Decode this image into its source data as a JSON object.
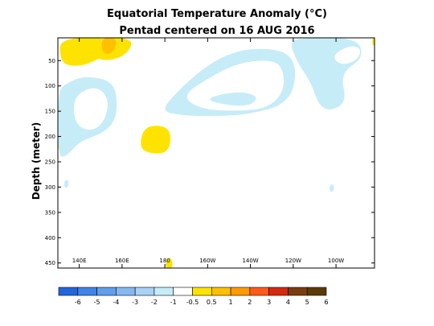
{
  "chart_data": {
    "type": "heatmap",
    "title": "Equatorial Temperature Anomaly (°C)",
    "subtitle": "Pentad centered on 16 AUG 2016",
    "ylabel": "Depth (meter)",
    "xlabel": "",
    "x_tick_labels": [
      "140E",
      "160E",
      "180",
      "160W",
      "140W",
      "120W",
      "100W"
    ],
    "x_ticks_deg_east": [
      140,
      160,
      180,
      200,
      220,
      240,
      260
    ],
    "xlim_deg_east": [
      130,
      278
    ],
    "y_ticks": [
      50,
      100,
      150,
      200,
      250,
      300,
      350,
      400,
      450
    ],
    "ylim": [
      5,
      460
    ],
    "y_inverted": true,
    "grid": false,
    "colorbar": {
      "labels": [
        "-6",
        "-5",
        "-4",
        "-3",
        "-2",
        "-1",
        "-0.5",
        "0.5",
        "1",
        "2",
        "3",
        "4",
        "5",
        "6"
      ],
      "colors": [
        "#2266dd",
        "#3f84e6",
        "#5f9fec",
        "#86b8f0",
        "#a9d2f5",
        "#c6ecf8",
        "#ffffff",
        "#ffe300",
        "#ffc000",
        "#ff9a00",
        "#ff5a18",
        "#d42a10",
        "#7a3d10",
        "#5a3a08"
      ]
    },
    "regions": [
      {
        "anomaly": 0.5,
        "points": [
          [
            131,
            5
          ],
          [
            155,
            5
          ],
          [
            155,
            25
          ],
          [
            150,
            45
          ],
          [
            142,
            60
          ],
          [
            134,
            60
          ],
          [
            131,
            45
          ]
        ]
      },
      {
        "anomaly": 0.5,
        "points": [
          [
            146,
            5
          ],
          [
            166,
            5
          ],
          [
            162,
            40
          ],
          [
            152,
            52
          ],
          [
            145,
            38
          ]
        ]
      },
      {
        "anomaly": 1,
        "points": [
          [
            150,
            5
          ],
          [
            158,
            5
          ],
          [
            156,
            35
          ],
          [
            151,
            38
          ]
        ]
      },
      {
        "anomaly": 0.5,
        "points": [
          [
            130,
            180
          ],
          [
            132,
            180
          ],
          [
            133,
            225
          ],
          [
            130,
            232
          ]
        ]
      },
      {
        "anomaly": 0.5,
        "points": [
          [
            170,
            182
          ],
          [
            178,
            177
          ],
          [
            183,
            190
          ],
          [
            182,
            230
          ],
          [
            175,
            235
          ],
          [
            168,
            225
          ]
        ]
      },
      {
        "anomaly": 0.5,
        "points": [
          [
            181,
            440
          ],
          [
            183,
            440
          ],
          [
            184,
            460
          ],
          [
            180,
            460
          ]
        ]
      },
      {
        "anomaly": 0.5,
        "points": [
          [
            277,
            5
          ],
          [
            278,
            5
          ],
          [
            278,
            20
          ],
          [
            277,
            20
          ]
        ]
      },
      {
        "anomaly": -0.5,
        "points": [
          [
            134,
            95
          ],
          [
            142,
            80
          ],
          [
            156,
            90
          ],
          [
            158,
            140
          ],
          [
            156,
            175
          ],
          [
            150,
            195
          ],
          [
            140,
            210
          ],
          [
            134,
            240
          ],
          [
            130,
            240
          ],
          [
            130,
            110
          ]
        ]
      },
      {
        "anomaly": -0.5,
        "points": [
          [
            178,
            150
          ],
          [
            186,
            110
          ],
          [
            198,
            65
          ],
          [
            208,
            40
          ],
          [
            220,
            25
          ],
          [
            237,
            30
          ],
          [
            242,
            70
          ],
          [
            238,
            135
          ],
          [
            218,
            158
          ],
          [
            198,
            160
          ],
          [
            188,
            158
          ]
        ]
      },
      {
        "anomaly": -0.5,
        "points": [
          [
            238,
            10
          ],
          [
            246,
            5
          ],
          [
            270,
            5
          ],
          [
            273,
            45
          ],
          [
            262,
            75
          ],
          [
            265,
            130
          ],
          [
            258,
            150
          ],
          [
            252,
            140
          ],
          [
            248,
            90
          ],
          [
            242,
            55
          ]
        ]
      },
      {
        "anomaly": -0.5,
        "points": [
          [
            133,
            287
          ],
          [
            135,
            285
          ],
          [
            135,
            300
          ],
          [
            133,
            302
          ]
        ]
      },
      {
        "anomaly": -0.5,
        "points": [
          [
            257,
            296
          ],
          [
            259,
            294
          ],
          [
            259,
            308
          ],
          [
            257,
            310
          ]
        ]
      },
      {
        "anomaly": -1,
        "points": [
          [
            139,
            115
          ],
          [
            148,
            100
          ],
          [
            154,
            125
          ],
          [
            152,
            170
          ],
          [
            146,
            190
          ],
          [
            139,
            180
          ],
          [
            137,
            145
          ]
        ]
      },
      {
        "anomaly": -1,
        "points": [
          [
            188,
            120
          ],
          [
            200,
            85
          ],
          [
            214,
            55
          ],
          [
            228,
            48
          ],
          [
            235,
            60
          ],
          [
            236,
            110
          ],
          [
            228,
            145
          ],
          [
            212,
            150
          ],
          [
            196,
            145
          ]
        ]
      },
      {
        "anomaly": -1,
        "points": [
          [
            258,
            40
          ],
          [
            266,
            20
          ],
          [
            272,
            25
          ],
          [
            270,
            50
          ],
          [
            262,
            60
          ]
        ]
      },
      {
        "anomaly": -2,
        "points": [
          [
            198,
            125
          ],
          [
            214,
            110
          ],
          [
            224,
            120
          ],
          [
            220,
            140
          ],
          [
            208,
            138
          ]
        ]
      }
    ]
  }
}
